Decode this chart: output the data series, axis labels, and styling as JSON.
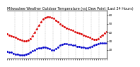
{
  "title": "Milwaukee Weather Outdoor Temperature (vs) Dew Point (Last 24 Hours)",
  "temp_color": "#dd0000",
  "dew_color": "#0000cc",
  "grid_color": "#999999",
  "bg_color": "#ffffff",
  "border_color": "#000000",
  "n_points": 48,
  "temp_values": [
    38,
    37,
    36,
    35,
    34,
    33,
    32,
    31,
    30,
    30,
    31,
    33,
    36,
    40,
    44,
    48,
    52,
    55,
    57,
    58,
    58,
    57,
    56,
    54,
    52,
    50,
    48,
    46,
    45,
    44,
    43,
    42,
    41,
    40,
    39,
    38,
    37,
    36,
    35,
    34,
    33,
    32,
    32,
    33,
    35,
    37,
    39,
    41
  ],
  "dew_values": [
    18,
    17,
    17,
    16,
    15,
    15,
    14,
    14,
    14,
    15,
    16,
    17,
    19,
    20,
    21,
    22,
    22,
    23,
    23,
    22,
    21,
    20,
    20,
    21,
    23,
    25,
    26,
    27,
    27,
    26,
    26,
    25,
    25,
    24,
    24,
    23,
    23,
    22,
    22,
    23,
    24,
    25,
    26,
    27,
    28,
    28,
    28,
    28
  ],
  "ylim": [
    10,
    65
  ],
  "ytick_labels": [
    "20",
    "30",
    "40",
    "50",
    "60"
  ],
  "ytick_vals": [
    20,
    30,
    40,
    50,
    60
  ],
  "n_gridlines": 12,
  "linewidth": 0.8,
  "markersize": 2.0,
  "title_fontsize": 3.5,
  "tick_fontsize": 3.0
}
